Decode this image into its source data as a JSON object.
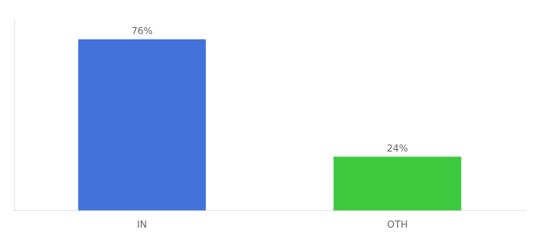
{
  "chart_data": {
    "type": "bar",
    "categories": [
      "IN",
      "OTH"
    ],
    "values": [
      76,
      24
    ],
    "value_labels": [
      "76%",
      "24%"
    ],
    "colors": [
      "#4472db",
      "#3dc93d"
    ],
    "ylim": [
      0,
      85
    ],
    "data_labels": true,
    "tick_labels": "x",
    "grid": false
  }
}
